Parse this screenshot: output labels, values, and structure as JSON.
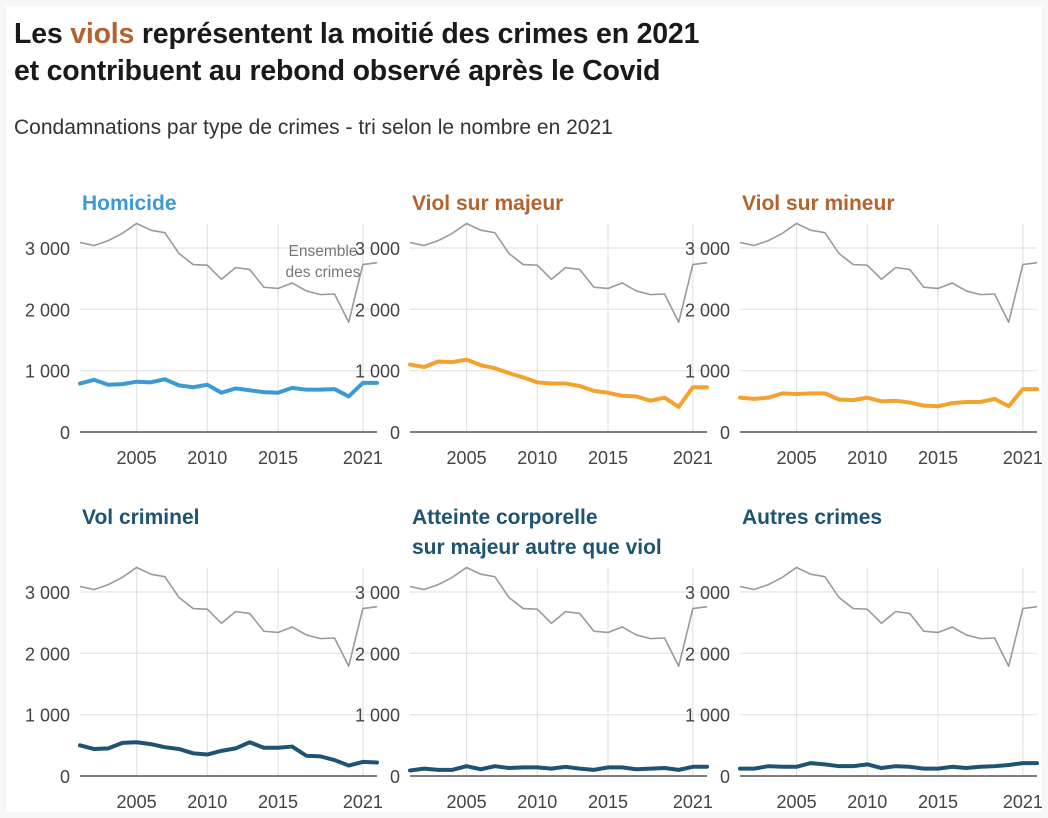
{
  "title": {
    "part1": "Les ",
    "highlight": "viols",
    "part2": " représentent la moitié des crimes en 2021",
    "line2": "et contribuent au rebond observé après le Covid"
  },
  "subtitle": "Condamnations par type de crimes - tri selon le nombre en 2021",
  "colors": {
    "highlight": "#b5632e",
    "homicide": "#3b9ad4",
    "viol_line": "#f5a130",
    "viol_title": "#b5632e",
    "dark": "#1e5371",
    "total": "#9a9a9a"
  },
  "chart_data": {
    "type": "line",
    "layout": "small-multiples",
    "x": [
      2001,
      2002,
      2003,
      2004,
      2005,
      2006,
      2007,
      2008,
      2009,
      2010,
      2011,
      2012,
      2013,
      2014,
      2015,
      2016,
      2017,
      2018,
      2019,
      2020,
      2021,
      2022
    ],
    "x_ticks": [
      2005,
      2010,
      2015,
      2021
    ],
    "x_tick_labels": [
      "2005",
      "2010",
      "2015",
      "2021"
    ],
    "xlim": [
      2001,
      2022
    ],
    "ylim": [
      0,
      3400
    ],
    "y_ticks": [
      0,
      1000,
      2000,
      3000
    ],
    "y_tick_labels": [
      "0",
      "1 000",
      "2 000",
      "3 000"
    ],
    "grid": true,
    "reference_series": {
      "label_lines": [
        "Ensemble",
        "des crimes"
      ],
      "values": [
        3090,
        3040,
        3120,
        3240,
        3400,
        3290,
        3250,
        2910,
        2730,
        2720,
        2490,
        2680,
        2650,
        2360,
        2340,
        2430,
        2300,
        2240,
        2250,
        1790,
        2730,
        2760
      ]
    },
    "panels": [
      {
        "title": [
          "Homicide"
        ],
        "color_key": "homicide",
        "title_color_key": "homicide",
        "values": [
          790,
          850,
          770,
          780,
          820,
          810,
          860,
          760,
          730,
          770,
          640,
          710,
          680,
          650,
          640,
          720,
          690,
          690,
          700,
          580,
          800,
          800
        ]
      },
      {
        "title": [
          "Viol sur majeur"
        ],
        "color_key": "viol_line",
        "title_color_key": "viol_title",
        "values": [
          1100,
          1060,
          1150,
          1140,
          1180,
          1090,
          1040,
          960,
          890,
          810,
          790,
          790,
          750,
          670,
          640,
          590,
          580,
          510,
          560,
          410,
          730,
          730
        ]
      },
      {
        "title": [
          "Viol sur mineur"
        ],
        "color_key": "viol_line",
        "title_color_key": "viol_title",
        "values": [
          560,
          540,
          560,
          630,
          620,
          630,
          630,
          530,
          520,
          560,
          500,
          510,
          480,
          430,
          420,
          470,
          490,
          490,
          540,
          420,
          700,
          700
        ]
      },
      {
        "title": [
          "Vol criminel"
        ],
        "color_key": "dark",
        "title_color_key": "dark",
        "values": [
          500,
          440,
          450,
          540,
          550,
          520,
          470,
          440,
          370,
          350,
          410,
          450,
          550,
          460,
          460,
          480,
          330,
          320,
          260,
          170,
          230,
          220
        ]
      },
      {
        "title": [
          "Atteinte corporelle",
          "sur majeur autre que viol"
        ],
        "color_key": "dark",
        "title_color_key": "dark",
        "values": [
          90,
          120,
          100,
          100,
          160,
          110,
          160,
          130,
          140,
          140,
          120,
          150,
          120,
          100,
          140,
          140,
          110,
          120,
          130,
          100,
          150,
          150
        ]
      },
      {
        "title": [
          "Autres crimes"
        ],
        "color_key": "dark",
        "title_color_key": "dark",
        "values": [
          120,
          120,
          160,
          150,
          150,
          210,
          190,
          160,
          160,
          190,
          130,
          160,
          150,
          120,
          120,
          150,
          130,
          150,
          160,
          180,
          210,
          210
        ]
      }
    ]
  }
}
